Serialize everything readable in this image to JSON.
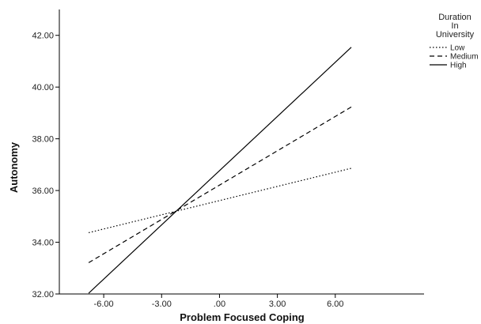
{
  "chart_data": {
    "type": "line",
    "title": "",
    "xlabel": "Problem Focused Coping",
    "ylabel": "Autonomy",
    "xlim": [
      -8.3,
      10.6
    ],
    "ylim": [
      32.0,
      43.0
    ],
    "x_ticks": [
      -6.0,
      -3.0,
      0.0,
      3.0,
      6.0
    ],
    "x_tick_labels": [
      "-6.00",
      "-3.00",
      ".00",
      "3.00",
      "6.00"
    ],
    "y_ticks": [
      32.0,
      34.0,
      36.0,
      38.0,
      40.0,
      42.0
    ],
    "y_tick_labels": [
      "32.00",
      "34.00",
      "36.00",
      "38.00",
      "40.00",
      "42.00"
    ],
    "grid": false,
    "legend": {
      "title_lines": [
        "Duration",
        "In",
        "University"
      ],
      "placement": "top-right"
    },
    "series": [
      {
        "name": "Low",
        "style": "dotted",
        "x": [
          -6.78,
          6.83
        ],
        "y": [
          34.37,
          36.86
        ]
      },
      {
        "name": "Medium",
        "style": "dashed",
        "x": [
          -6.78,
          6.83
        ],
        "y": [
          33.21,
          39.23
        ]
      },
      {
        "name": "High",
        "style": "solid",
        "x": [
          -6.78,
          6.83
        ],
        "y": [
          32.03,
          41.54
        ]
      }
    ],
    "line_color": "#000000"
  }
}
